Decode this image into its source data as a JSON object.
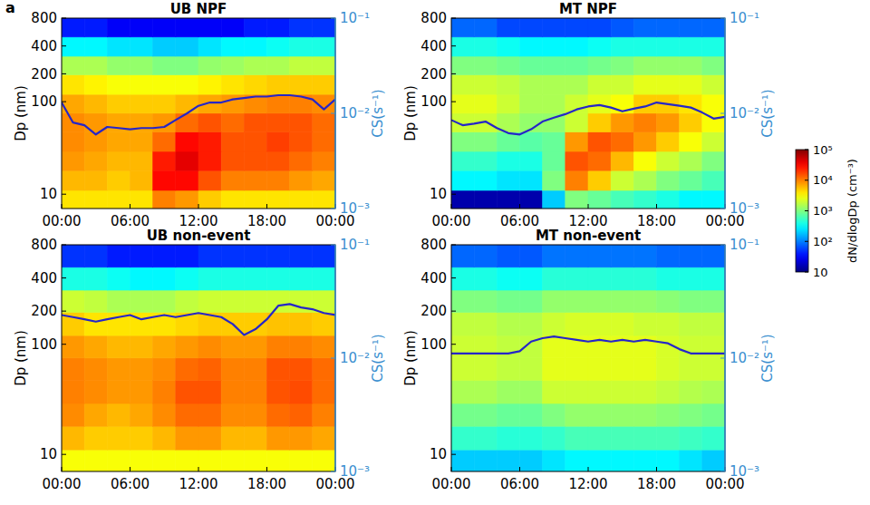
{
  "panel_label": "a",
  "colorbar": {
    "label": "dN/dlogDp (cm⁻³)",
    "range": [
      10,
      100000
    ],
    "ticks": [
      10,
      {
        "value": 100,
        "label": "10²"
      },
      {
        "value": 1000,
        "label": "10³"
      },
      {
        "value": 10000,
        "label": "10⁴"
      },
      {
        "value": 100000,
        "label": "10⁵"
      }
    ]
  },
  "chart_data": [
    {
      "type": "heatmap",
      "title": "UB NPF",
      "ylabel": "Dp (nm)",
      "y2label": "CS(s⁻¹)",
      "log": "y",
      "xlim": [
        0,
        24
      ],
      "xticks": [
        {
          "value": 0,
          "label": "00:00"
        },
        {
          "value": 6,
          "label": "06:00"
        },
        {
          "value": 12,
          "label": "12:00"
        },
        {
          "value": 18,
          "label": "18:00"
        },
        {
          "value": 24,
          "label": "00:00"
        }
      ],
      "ylim": [
        7,
        800
      ],
      "yticks": [
        10,
        100,
        200,
        400,
        800
      ],
      "y2lim": [
        0.001,
        0.1
      ],
      "y2ticks": [
        {
          "value": 0.001,
          "label": "10⁻³"
        },
        {
          "value": 0.01,
          "label": "10⁻²"
        },
        {
          "value": 0.1,
          "label": "10⁻¹"
        }
      ],
      "x_bins": [
        0,
        2,
        4,
        6,
        8,
        10,
        12,
        14,
        16,
        18,
        20,
        22,
        24
      ],
      "y_bins": [
        7,
        11,
        18,
        29,
        47,
        75,
        120,
        195,
        310,
        500,
        800
      ],
      "cells": [
        [
          4000.0,
          4000.0,
          4000.0,
          4000.0,
          10000.0,
          8000.0,
          5000.0,
          4000.0,
          4000.0,
          4000.0,
          4000.0,
          4000.0
        ],
        [
          6000.0,
          6000.0,
          5000.0,
          6000.0,
          30000.0,
          30000.0,
          15000.0,
          10000.0,
          10000.0,
          10000.0,
          8000.0,
          7000.0
        ],
        [
          8000.0,
          7000.0,
          6000.0,
          6000.0,
          25000.0,
          40000.0,
          25000.0,
          15000.0,
          15000.0,
          15000.0,
          12000.0,
          10000.0
        ],
        [
          9000.0,
          8000.0,
          7000.0,
          7000.0,
          12000.0,
          30000.0,
          25000.0,
          15000.0,
          15000.0,
          18000.0,
          15000.0,
          12000.0
        ],
        [
          9000.0,
          8000.0,
          7000.0,
          7000.0,
          8000.0,
          12000.0,
          15000.0,
          12000.0,
          15000.0,
          15000.0,
          15000.0,
          12000.0
        ],
        [
          7000.0,
          6000.0,
          5000.0,
          5000.0,
          5000.0,
          6000.0,
          7000.0,
          8000.0,
          9000.0,
          10000.0,
          10000.0,
          9000.0
        ],
        [
          4000.0,
          3500.0,
          3000.0,
          3000.0,
          3000.0,
          3000.0,
          3500.0,
          4000.0,
          4500.0,
          5000.0,
          5000.0,
          5000.0
        ],
        [
          1500.0,
          1500.0,
          1200.0,
          1200.0,
          1000.0,
          1000.0,
          1200.0,
          1300.0,
          1500.0,
          1500.0,
          1800.0,
          1800.0
        ],
        [
          300,
          300,
          250,
          250,
          200,
          200,
          250,
          300,
          300,
          350,
          400,
          400
        ],
        [
          40,
          40,
          30,
          30,
          30,
          30,
          30,
          30,
          40,
          40,
          50,
          50
        ]
      ],
      "series": [
        {
          "axis": "y2",
          "color": "#2626c8",
          "x": [
            0,
            1,
            2,
            3,
            4,
            5,
            6,
            7,
            8,
            9,
            10,
            11,
            12,
            13,
            14,
            15,
            16,
            17,
            18,
            19,
            20,
            21,
            22,
            23,
            24
          ],
          "values": [
            0.013,
            0.008,
            0.0075,
            0.006,
            0.0072,
            0.007,
            0.0068,
            0.007,
            0.007,
            0.0072,
            0.0085,
            0.01,
            0.012,
            0.013,
            0.013,
            0.014,
            0.0145,
            0.015,
            0.015,
            0.0155,
            0.0155,
            0.015,
            0.014,
            0.011,
            0.014
          ]
        }
      ]
    },
    {
      "type": "heatmap",
      "title": "MT NPF",
      "ylabel": "Dp (nm)",
      "y2label": "CS(s⁻¹)",
      "log": "y",
      "xlim": [
        0,
        24
      ],
      "xticks": [
        {
          "value": 0,
          "label": "00:00"
        },
        {
          "value": 6,
          "label": "06:00"
        },
        {
          "value": 12,
          "label": "12:00"
        },
        {
          "value": 18,
          "label": "18:00"
        },
        {
          "value": 24,
          "label": "00:00"
        }
      ],
      "ylim": [
        7,
        800
      ],
      "yticks": [
        10,
        100,
        200,
        400,
        800
      ],
      "y2lim": [
        0.001,
        0.1
      ],
      "y2ticks": [
        {
          "value": 0.001,
          "label": "10⁻³"
        },
        {
          "value": 0.01,
          "label": "10⁻²"
        },
        {
          "value": 0.1,
          "label": "10⁻¹"
        }
      ],
      "x_bins": [
        0,
        2,
        4,
        6,
        8,
        10,
        12,
        14,
        16,
        18,
        20,
        22,
        24
      ],
      "y_bins": [
        7,
        11,
        18,
        29,
        47,
        75,
        120,
        195,
        310,
        500,
        800
      ],
      "cells": [
        [
          15,
          15,
          15,
          15,
          200,
          1000.0,
          800,
          600,
          500,
          400,
          300,
          300
        ],
        [
          300,
          300,
          250,
          250,
          1000.0,
          10000.0,
          5000.0,
          2000.0,
          1500.0,
          1000.0,
          800,
          600
        ],
        [
          500,
          500,
          400,
          400,
          800,
          15000.0,
          12000.0,
          6000.0,
          3000.0,
          2000.0,
          1500.0,
          1000.0
        ],
        [
          1000.0,
          1000.0,
          800,
          700,
          800,
          8000.0,
          15000.0,
          12000.0,
          8000.0,
          5000.0,
          3000.0,
          2000.0
        ],
        [
          2000.0,
          2000.0,
          1500.0,
          1200.0,
          1200.0,
          2000.0,
          5000.0,
          8000.0,
          10000.0,
          8000.0,
          5000.0,
          3000.0
        ],
        [
          2500.0,
          2500.0,
          2000.0,
          1500.0,
          1500.0,
          2000.0,
          2500.0,
          3000.0,
          5000.0,
          5000.0,
          4000.0,
          3000.0
        ],
        [
          2000.0,
          2000.0,
          1800.0,
          1500.0,
          1500.0,
          1500.0,
          2000.0,
          2000.0,
          2500.0,
          2500.0,
          2500.0,
          2000.0
        ],
        [
          1000.0,
          1000.0,
          900,
          800,
          800,
          800,
          900,
          1000.0,
          1200.0,
          1200.0,
          1200.0,
          1000.0
        ],
        [
          400,
          400,
          350,
          300,
          300,
          300,
          350,
          400,
          400,
          400,
          400,
          400
        ],
        [
          80,
          80,
          60,
          60,
          60,
          60,
          60,
          70,
          80,
          80,
          80,
          80
        ]
      ],
      "series": [
        {
          "axis": "y2",
          "color": "#2626c8",
          "x": [
            0,
            1,
            2,
            3,
            4,
            5,
            6,
            7,
            8,
            9,
            10,
            11,
            12,
            13,
            14,
            15,
            16,
            17,
            18,
            19,
            20,
            21,
            22,
            23,
            24
          ],
          "values": [
            0.0085,
            0.0075,
            0.0078,
            0.0082,
            0.007,
            0.0062,
            0.006,
            0.0068,
            0.0082,
            0.009,
            0.0098,
            0.011,
            0.0118,
            0.0122,
            0.0115,
            0.0105,
            0.0112,
            0.0118,
            0.013,
            0.0125,
            0.012,
            0.0115,
            0.0102,
            0.0088,
            0.0092
          ]
        }
      ]
    },
    {
      "type": "heatmap",
      "title": "UB non-event",
      "ylabel": "Dp (nm)",
      "y2label": "CS(s⁻¹)",
      "log": "y",
      "xlim": [
        0,
        24
      ],
      "xticks": [
        {
          "value": 0,
          "label": "00:00"
        },
        {
          "value": 6,
          "label": "06:00"
        },
        {
          "value": 12,
          "label": "12:00"
        },
        {
          "value": 18,
          "label": "18:00"
        },
        {
          "value": 24,
          "label": "00:00"
        }
      ],
      "ylim": [
        7,
        800
      ],
      "yticks": [
        10,
        100,
        200,
        400,
        800
      ],
      "y2lim": [
        0.001,
        0.1
      ],
      "y2ticks": [
        {
          "value": 0.001,
          "label": "10⁻³"
        },
        {
          "value": 0.01,
          "label": "10⁻²"
        },
        {
          "value": 0.1,
          "label": "10⁻¹"
        }
      ],
      "x_bins": [
        0,
        2,
        4,
        6,
        8,
        10,
        12,
        14,
        16,
        18,
        20,
        22,
        24
      ],
      "y_bins": [
        7,
        11,
        18,
        29,
        47,
        75,
        120,
        195,
        310,
        500,
        800
      ],
      "cells": [
        [
          3000.0,
          3000.0,
          3000.0,
          3000.0,
          3000.0,
          3000.0,
          3000.0,
          3000.0,
          3000.0,
          3000.0,
          3000.0,
          3000.0
        ],
        [
          6000.0,
          5000.0,
          5000.0,
          5000.0,
          6000.0,
          8000.0,
          8000.0,
          6000.0,
          6000.0,
          8000.0,
          8000.0,
          7000.0
        ],
        [
          9000.0,
          7000.0,
          6000.0,
          7000.0,
          9000.0,
          12000.0,
          12000.0,
          9000.0,
          9000.0,
          12000.0,
          13000.0,
          10000.0
        ],
        [
          10000.0,
          9000.0,
          8000.0,
          8000.0,
          10000.0,
          15000.0,
          15000.0,
          10000.0,
          10000.0,
          15000.0,
          16000.0,
          12000.0
        ],
        [
          10000.0,
          9000.0,
          8000.0,
          8000.0,
          9000.0,
          12000.0,
          13000.0,
          10000.0,
          10000.0,
          15000.0,
          15000.0,
          12000.0
        ],
        [
          8000.0,
          7000.0,
          6000.0,
          6000.0,
          7000.0,
          8000.0,
          9000.0,
          8000.0,
          8000.0,
          10000.0,
          10000.0,
          9000.0
        ],
        [
          5000.0,
          4000.0,
          4000.0,
          4000.0,
          4000.0,
          4500.0,
          5000.0,
          5000.0,
          5000.0,
          5500.0,
          5500.0,
          5000.0
        ],
        [
          2000.0,
          1800.0,
          1500.0,
          1500.0,
          1500.0,
          1800.0,
          2000.0,
          2000.0,
          2000.0,
          2000.0,
          2000.0,
          2000.0
        ],
        [
          400,
          400,
          350,
          300,
          300,
          350,
          400,
          400,
          400,
          400,
          400,
          400
        ],
        [
          50,
          50,
          40,
          40,
          40,
          40,
          50,
          50,
          50,
          50,
          50,
          50
        ]
      ],
      "series": [
        {
          "axis": "y2",
          "color": "#2626c8",
          "x": [
            0,
            1,
            2,
            3,
            4,
            5,
            6,
            7,
            8,
            9,
            10,
            11,
            12,
            13,
            14,
            15,
            16,
            17,
            18,
            19,
            20,
            21,
            22,
            23,
            24
          ],
          "values": [
            0.024,
            0.023,
            0.022,
            0.021,
            0.022,
            0.023,
            0.024,
            0.022,
            0.023,
            0.024,
            0.023,
            0.024,
            0.025,
            0.024,
            0.023,
            0.02,
            0.016,
            0.018,
            0.022,
            0.029,
            0.03,
            0.028,
            0.027,
            0.025,
            0.024
          ]
        }
      ]
    },
    {
      "type": "heatmap",
      "title": "MT non-event",
      "ylabel": "Dp (nm)",
      "y2label": "CS(s⁻¹)",
      "log": "y",
      "xlim": [
        0,
        24
      ],
      "xticks": [
        {
          "value": 0,
          "label": "00:00"
        },
        {
          "value": 6,
          "label": "06:00"
        },
        {
          "value": 12,
          "label": "12:00"
        },
        {
          "value": 18,
          "label": "18:00"
        },
        {
          "value": 24,
          "label": "00:00"
        }
      ],
      "ylim": [
        7,
        800
      ],
      "yticks": [
        10,
        100,
        200,
        400,
        800
      ],
      "y2lim": [
        0.001,
        0.1
      ],
      "y2ticks": [
        {
          "value": 0.001,
          "label": "10⁻³"
        },
        {
          "value": 0.01,
          "label": "10⁻²"
        },
        {
          "value": 0.1,
          "label": "10⁻¹"
        }
      ],
      "x_bins": [
        0,
        2,
        4,
        6,
        8,
        10,
        12,
        14,
        16,
        18,
        20,
        22,
        24
      ],
      "y_bins": [
        7,
        11,
        18,
        29,
        47,
        75,
        120,
        195,
        310,
        500,
        800
      ],
      "cells": [
        [
          200,
          200,
          200,
          200,
          250,
          300,
          300,
          300,
          300,
          300,
          250,
          200
        ],
        [
          500,
          500,
          450,
          450,
          500,
          600,
          600,
          600,
          600,
          600,
          550,
          500
        ],
        [
          900,
          900,
          800,
          800,
          1000.0,
          1200.0,
          1200.0,
          1200.0,
          1200.0,
          1100.0,
          1000.0,
          900
        ],
        [
          1500.0,
          1500.0,
          1300.0,
          1300.0,
          2000.0,
          2000.0,
          2000.0,
          2000.0,
          2000.0,
          1800.0,
          1600.0,
          1500.0
        ],
        [
          2000.0,
          2000.0,
          1800.0,
          1800.0,
          2500.0,
          2500.0,
          2500.0,
          2500.0,
          2500.0,
          2200.0,
          2000.0,
          2000.0
        ],
        [
          2000.0,
          2000.0,
          1800.0,
          1800.0,
          2500.0,
          2500.0,
          2500.0,
          2500.0,
          2500.0,
          2200.0,
          2000.0,
          2000.0
        ],
        [
          1800.0,
          1800.0,
          1600.0,
          1600.0,
          2000.0,
          2200.0,
          2200.0,
          2200.0,
          2000.0,
          2000.0,
          1800.0,
          1800.0
        ],
        [
          1000.0,
          1000.0,
          900,
          900,
          1200.0,
          1200.0,
          1200.0,
          1200.0,
          1200.0,
          1100.0,
          1000.0,
          1000.0
        ],
        [
          400,
          400,
          350,
          350,
          450,
          450,
          450,
          450,
          450,
          400,
          400,
          400
        ],
        [
          80,
          80,
          70,
          70,
          90,
          90,
          90,
          90,
          90,
          80,
          80,
          80
        ]
      ],
      "series": [
        {
          "axis": "y2",
          "color": "#2626c8",
          "x": [
            0,
            1,
            2,
            3,
            4,
            5,
            6,
            7,
            8,
            9,
            10,
            11,
            12,
            13,
            14,
            15,
            16,
            17,
            18,
            19,
            20,
            21,
            22,
            23,
            24
          ],
          "values": [
            0.011,
            0.011,
            0.011,
            0.011,
            0.011,
            0.011,
            0.0115,
            0.014,
            0.015,
            0.0155,
            0.015,
            0.0145,
            0.014,
            0.0145,
            0.014,
            0.0145,
            0.014,
            0.0145,
            0.014,
            0.0135,
            0.012,
            0.011,
            0.011,
            0.011,
            0.011
          ]
        }
      ]
    }
  ]
}
